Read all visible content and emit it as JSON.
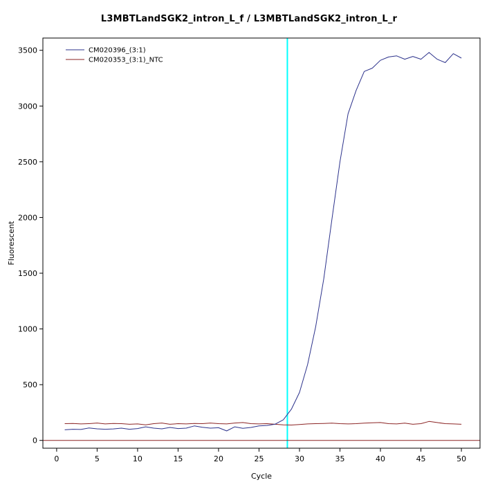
{
  "chart_data": {
    "type": "line",
    "title": "L3MBTLandSGK2_intron_L_f / L3MBTLandSGK2_intron_L_r",
    "xlabel": "Cycle",
    "ylabel": "Fluorescent",
    "xlim": [
      -1.7,
      52.3
    ],
    "ylim": [
      -70,
      3610
    ],
    "x_ticks": [
      0,
      5,
      10,
      15,
      20,
      25,
      30,
      35,
      40,
      45,
      50
    ],
    "y_ticks": [
      0,
      500,
      1000,
      1500,
      2000,
      2500,
      3000,
      3500
    ],
    "grid": false,
    "legend_position": "top-left",
    "x": [
      1,
      2,
      3,
      4,
      5,
      6,
      7,
      8,
      9,
      10,
      11,
      12,
      13,
      14,
      15,
      16,
      17,
      18,
      19,
      20,
      21,
      22,
      23,
      24,
      25,
      26,
      27,
      28,
      29,
      30,
      31,
      32,
      33,
      34,
      35,
      36,
      37,
      38,
      39,
      40,
      41,
      42,
      43,
      44,
      45,
      46,
      47,
      48,
      49,
      50
    ],
    "series": [
      {
        "name": "CM020353_(3:1)_NTC",
        "color": "#8B2323",
        "values": [
          150,
          152,
          148,
          150,
          156,
          148,
          152,
          150,
          145,
          148,
          140,
          150,
          156,
          145,
          150,
          148,
          152,
          150,
          156,
          150,
          148,
          156,
          160,
          150,
          148,
          150,
          145,
          140,
          138,
          142,
          148,
          150,
          152,
          155,
          150,
          148,
          150,
          155,
          158,
          160,
          150,
          148,
          155,
          145,
          150,
          170,
          160,
          150,
          148,
          145
        ]
      },
      {
        "name": "CM020396_(3:1)",
        "color": "#2B318B",
        "values": [
          95,
          100,
          98,
          112,
          104,
          100,
          103,
          110,
          100,
          106,
          122,
          110,
          104,
          116,
          106,
          110,
          130,
          118,
          110,
          114,
          85,
          122,
          108,
          116,
          130,
          134,
          146,
          185,
          280,
          430,
          680,
          1020,
          1450,
          1980,
          2500,
          2930,
          3140,
          3310,
          3340,
          3410,
          3440,
          3450,
          3420,
          3445,
          3420,
          3480,
          3420,
          3390,
          3470,
          3430
        ]
      }
    ],
    "threshold_vline": {
      "x": 28.5,
      "color": "#00FFFF"
    },
    "baseline_hline": {
      "y": 0,
      "color": "#8B2323"
    }
  }
}
